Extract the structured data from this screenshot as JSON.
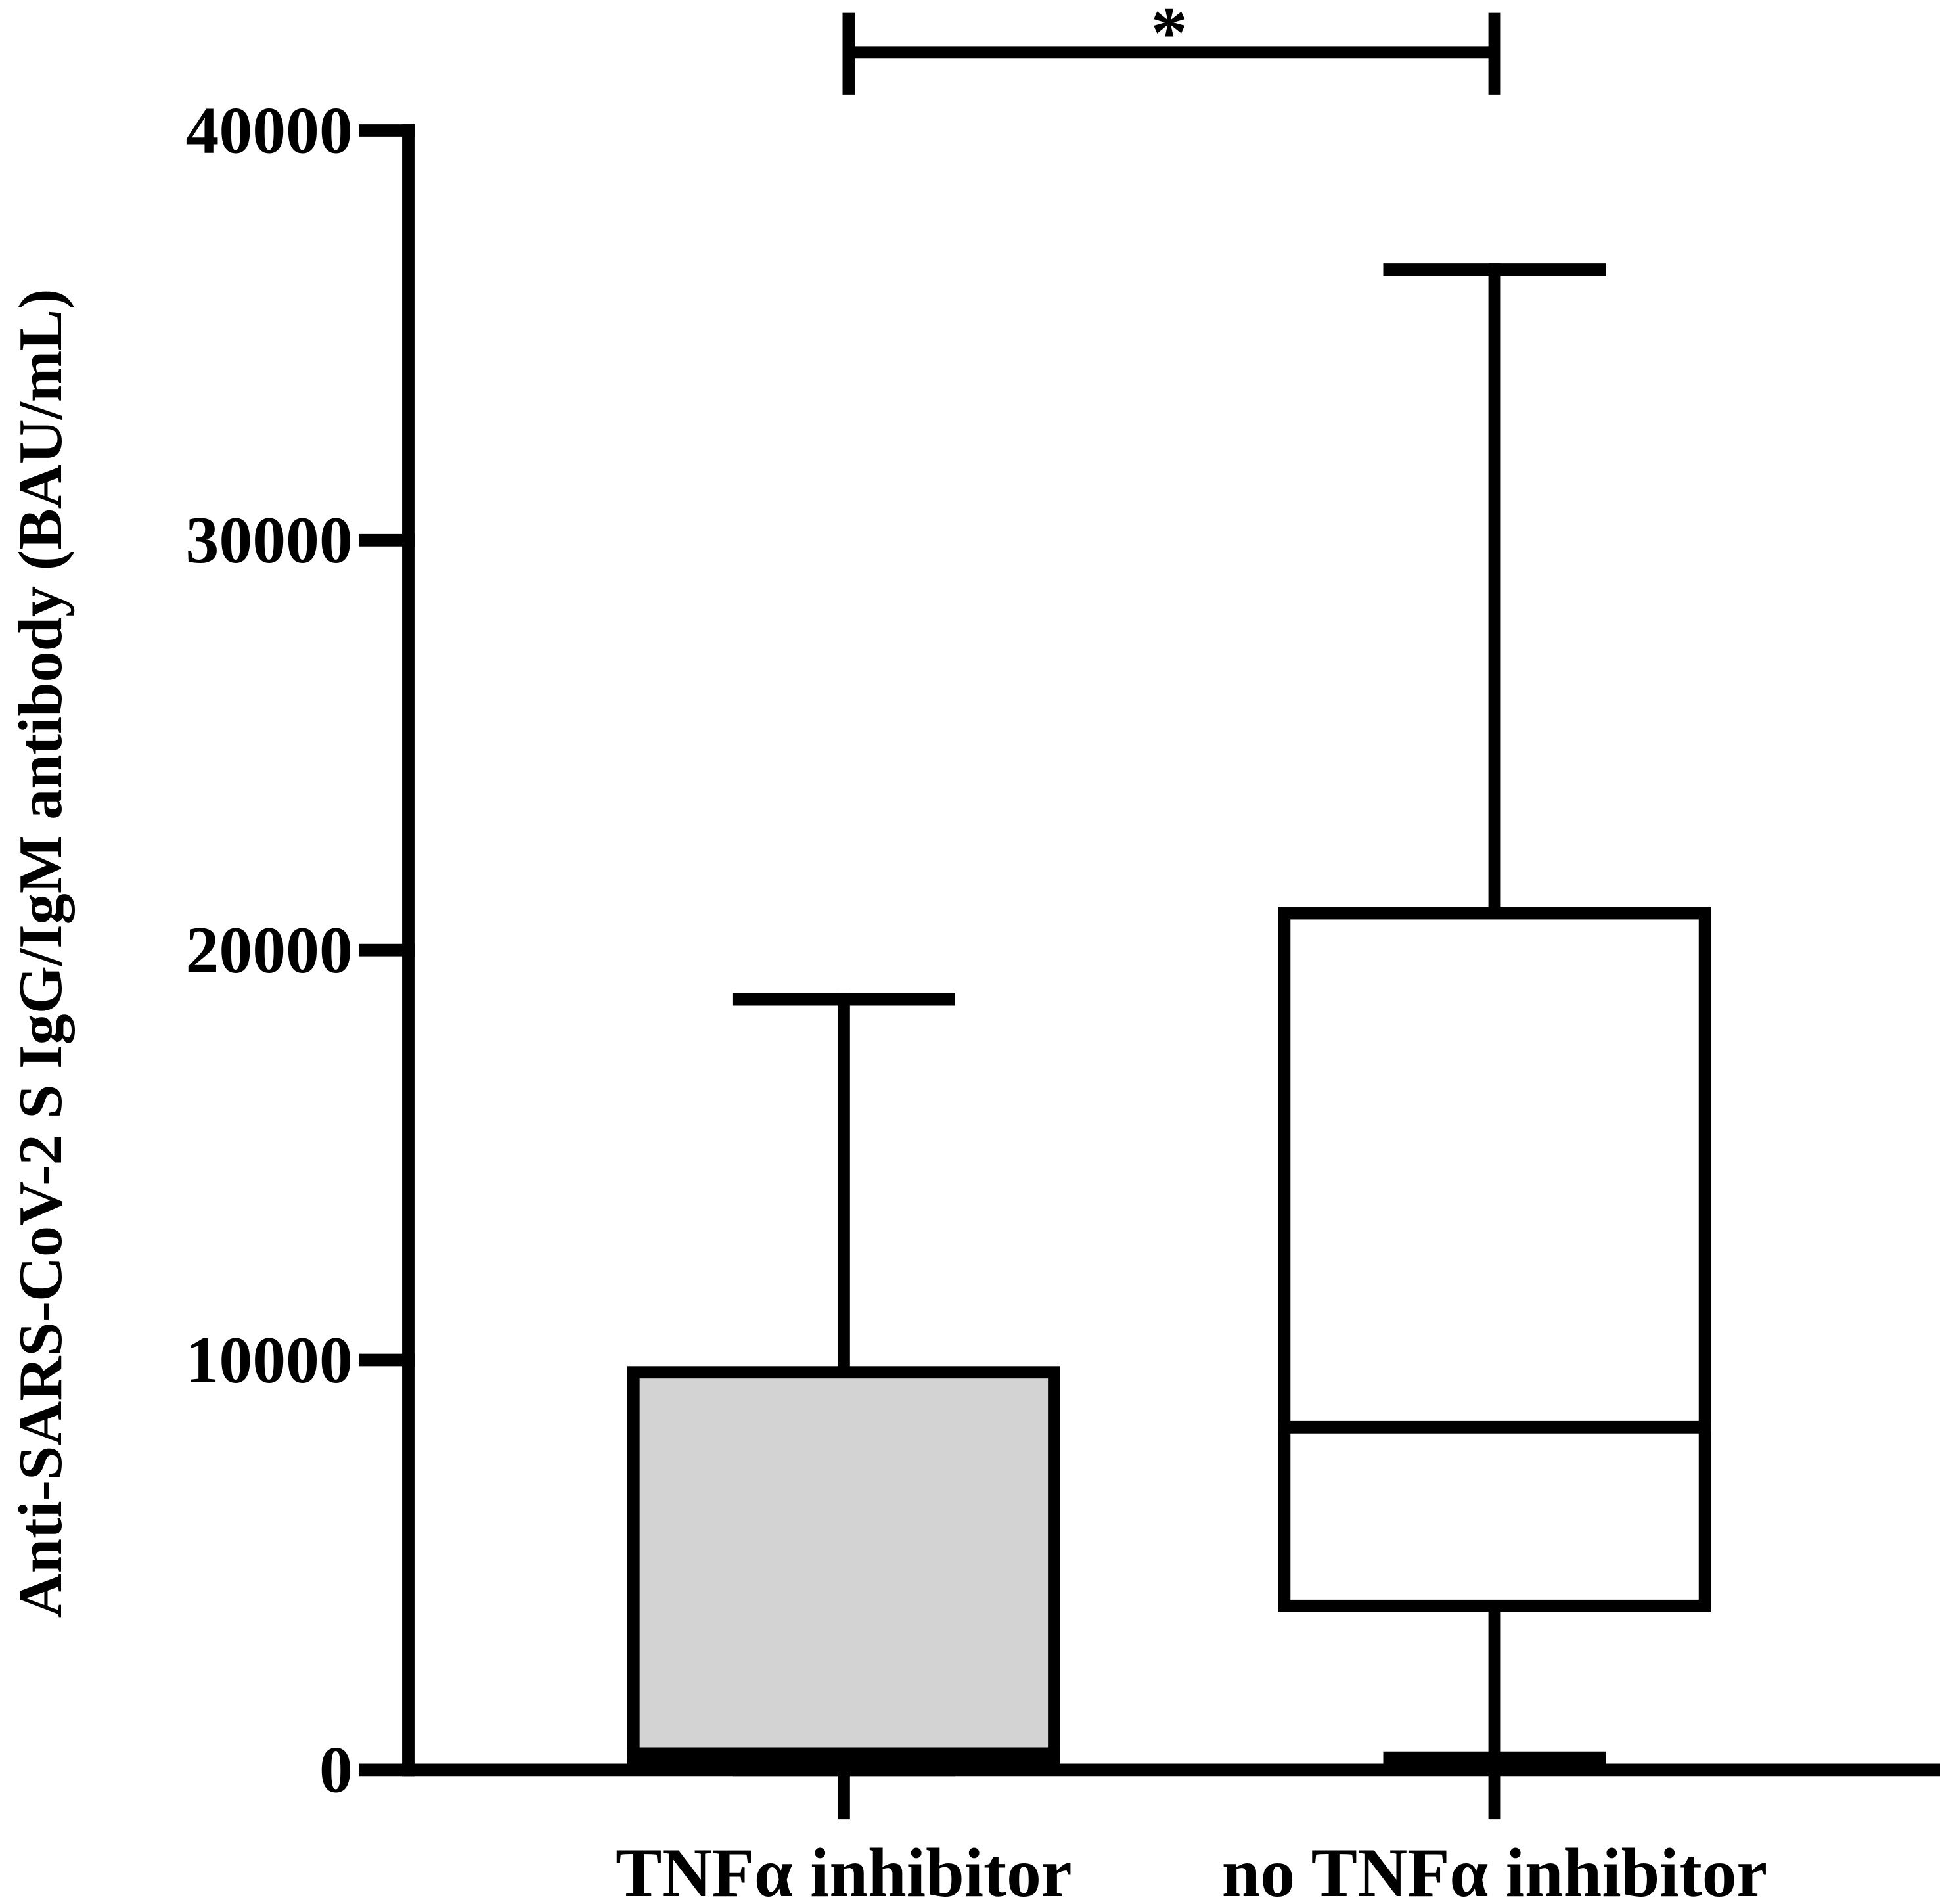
{
  "chart_data": {
    "type": "box",
    "y_label": "Anti-SARS-CoV-2 S IgG/IgM antibody (BAU/mL)",
    "categories": [
      "TNFα inhibitor",
      "no TNFα inhibitor"
    ],
    "boxes": [
      {
        "min": 0,
        "q1": 200,
        "median": 400,
        "q3": 9700,
        "max": 18800,
        "color": "#d3d3d3"
      },
      {
        "min": 300,
        "q1": 4000,
        "median": 8360,
        "q3": 20900,
        "max": 36600,
        "color": "#ffffff"
      }
    ],
    "significance_label": "*",
    "ylim": [
      0,
      40000
    ],
    "yticks": [
      0,
      10000,
      20000,
      30000,
      40000
    ]
  }
}
